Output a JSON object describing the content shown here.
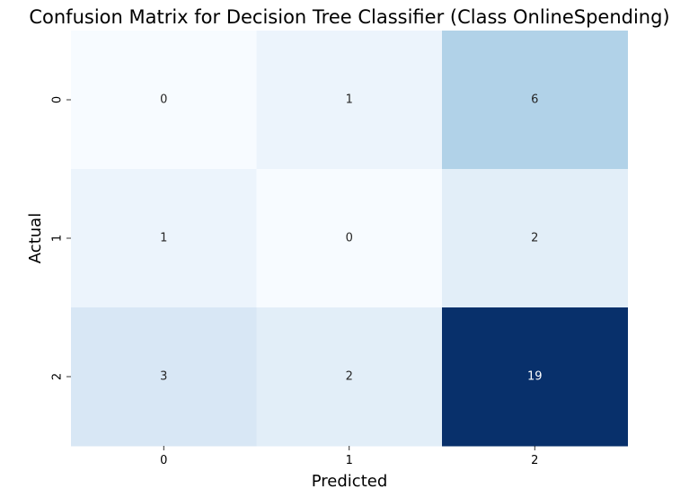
{
  "chart_data": {
    "type": "heatmap",
    "title": "Confusion Matrix for Decision Tree Classifier (Class OnlineSpending)",
    "xlabel": "Predicted",
    "ylabel": "Actual",
    "x_tick_labels": [
      "0",
      "1",
      "2"
    ],
    "y_tick_labels": [
      "0",
      "1",
      "2"
    ],
    "matrix": [
      [
        0,
        1,
        6
      ],
      [
        1,
        0,
        2
      ],
      [
        3,
        2,
        19
      ]
    ],
    "colormap": "Blues",
    "annotated": true,
    "colorbar": false,
    "color_scale": {
      "low": "#f7fbff",
      "mid_light": "#deebf7",
      "mid": "#9ecae1",
      "mid_dark": "#4292c6",
      "high": "#08306b"
    }
  }
}
